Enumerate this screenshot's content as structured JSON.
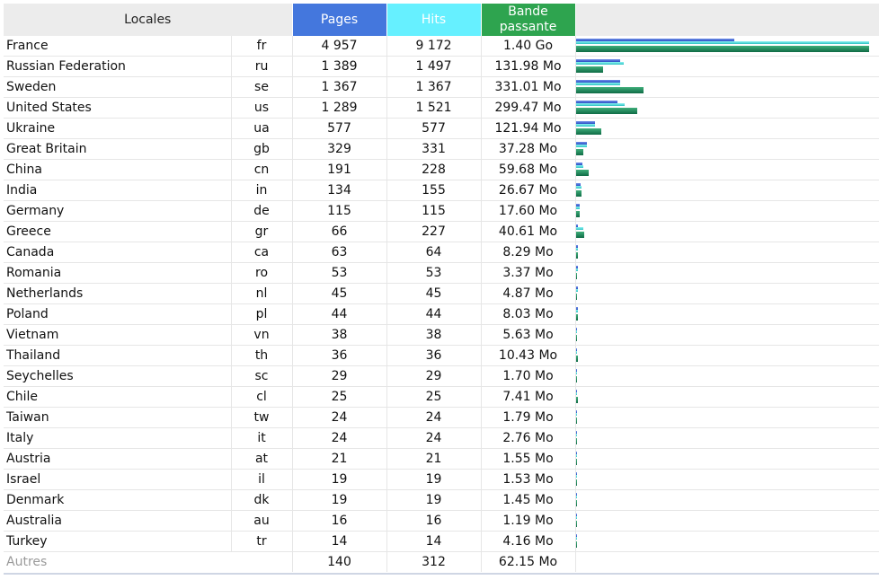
{
  "colors": {
    "pages": "#4477dd",
    "hits": "#66f0ff",
    "bandwidth": "#2ea44f"
  },
  "header": {
    "locales": "Locales",
    "pages": "Pages",
    "hits": "Hits",
    "bandwidth_line1": "Bande",
    "bandwidth_line2": "passante"
  },
  "max": {
    "pages": 4957,
    "hits": 9172,
    "bandwidth_mb": 1433.6
  },
  "rows": [
    {
      "name": "France",
      "code": "fr",
      "pages": "4 957",
      "hits": "9 172",
      "bandwidth": "1.40 Go",
      "p": 4957,
      "h": 9172,
      "b": 1433.6
    },
    {
      "name": "Russian Federation",
      "code": "ru",
      "pages": "1 389",
      "hits": "1 497",
      "bandwidth": "131.98 Mo",
      "p": 1389,
      "h": 1497,
      "b": 131.98
    },
    {
      "name": "Sweden",
      "code": "se",
      "pages": "1 367",
      "hits": "1 367",
      "bandwidth": "331.01 Mo",
      "p": 1367,
      "h": 1367,
      "b": 331.01
    },
    {
      "name": "United States",
      "code": "us",
      "pages": "1 289",
      "hits": "1 521",
      "bandwidth": "299.47 Mo",
      "p": 1289,
      "h": 1521,
      "b": 299.47
    },
    {
      "name": "Ukraine",
      "code": "ua",
      "pages": "577",
      "hits": "577",
      "bandwidth": "121.94 Mo",
      "p": 577,
      "h": 577,
      "b": 121.94
    },
    {
      "name": "Great Britain",
      "code": "gb",
      "pages": "329",
      "hits": "331",
      "bandwidth": "37.28 Mo",
      "p": 329,
      "h": 331,
      "b": 37.28
    },
    {
      "name": "China",
      "code": "cn",
      "pages": "191",
      "hits": "228",
      "bandwidth": "59.68 Mo",
      "p": 191,
      "h": 228,
      "b": 59.68
    },
    {
      "name": "India",
      "code": "in",
      "pages": "134",
      "hits": "155",
      "bandwidth": "26.67 Mo",
      "p": 134,
      "h": 155,
      "b": 26.67
    },
    {
      "name": "Germany",
      "code": "de",
      "pages": "115",
      "hits": "115",
      "bandwidth": "17.60 Mo",
      "p": 115,
      "h": 115,
      "b": 17.6
    },
    {
      "name": "Greece",
      "code": "gr",
      "pages": "66",
      "hits": "227",
      "bandwidth": "40.61 Mo",
      "p": 66,
      "h": 227,
      "b": 40.61
    },
    {
      "name": "Canada",
      "code": "ca",
      "pages": "63",
      "hits": "64",
      "bandwidth": "8.29 Mo",
      "p": 63,
      "h": 64,
      "b": 8.29
    },
    {
      "name": "Romania",
      "code": "ro",
      "pages": "53",
      "hits": "53",
      "bandwidth": "3.37 Mo",
      "p": 53,
      "h": 53,
      "b": 3.37
    },
    {
      "name": "Netherlands",
      "code": "nl",
      "pages": "45",
      "hits": "45",
      "bandwidth": "4.87 Mo",
      "p": 45,
      "h": 45,
      "b": 4.87
    },
    {
      "name": "Poland",
      "code": "pl",
      "pages": "44",
      "hits": "44",
      "bandwidth": "8.03 Mo",
      "p": 44,
      "h": 44,
      "b": 8.03
    },
    {
      "name": "Vietnam",
      "code": "vn",
      "pages": "38",
      "hits": "38",
      "bandwidth": "5.63 Mo",
      "p": 38,
      "h": 38,
      "b": 5.63
    },
    {
      "name": "Thailand",
      "code": "th",
      "pages": "36",
      "hits": "36",
      "bandwidth": "10.43 Mo",
      "p": 36,
      "h": 36,
      "b": 10.43
    },
    {
      "name": "Seychelles",
      "code": "sc",
      "pages": "29",
      "hits": "29",
      "bandwidth": "1.70 Mo",
      "p": 29,
      "h": 29,
      "b": 1.7
    },
    {
      "name": "Chile",
      "code": "cl",
      "pages": "25",
      "hits": "25",
      "bandwidth": "7.41 Mo",
      "p": 25,
      "h": 25,
      "b": 7.41
    },
    {
      "name": "Taiwan",
      "code": "tw",
      "pages": "24",
      "hits": "24",
      "bandwidth": "1.79 Mo",
      "p": 24,
      "h": 24,
      "b": 1.79
    },
    {
      "name": "Italy",
      "code": "it",
      "pages": "24",
      "hits": "24",
      "bandwidth": "2.76 Mo",
      "p": 24,
      "h": 24,
      "b": 2.76
    },
    {
      "name": "Austria",
      "code": "at",
      "pages": "21",
      "hits": "21",
      "bandwidth": "1.55 Mo",
      "p": 21,
      "h": 21,
      "b": 1.55
    },
    {
      "name": "Israel",
      "code": "il",
      "pages": "19",
      "hits": "19",
      "bandwidth": "1.53 Mo",
      "p": 19,
      "h": 19,
      "b": 1.53
    },
    {
      "name": "Denmark",
      "code": "dk",
      "pages": "19",
      "hits": "19",
      "bandwidth": "1.45 Mo",
      "p": 19,
      "h": 19,
      "b": 1.45
    },
    {
      "name": "Australia",
      "code": "au",
      "pages": "16",
      "hits": "16",
      "bandwidth": "1.19 Mo",
      "p": 16,
      "h": 16,
      "b": 1.19
    },
    {
      "name": "Turkey",
      "code": "tr",
      "pages": "14",
      "hits": "14",
      "bandwidth": "4.16 Mo",
      "p": 14,
      "h": 14,
      "b": 4.16
    }
  ],
  "other": {
    "name": "Autres",
    "pages": "140",
    "hits": "312",
    "bandwidth": "62.15 Mo"
  }
}
